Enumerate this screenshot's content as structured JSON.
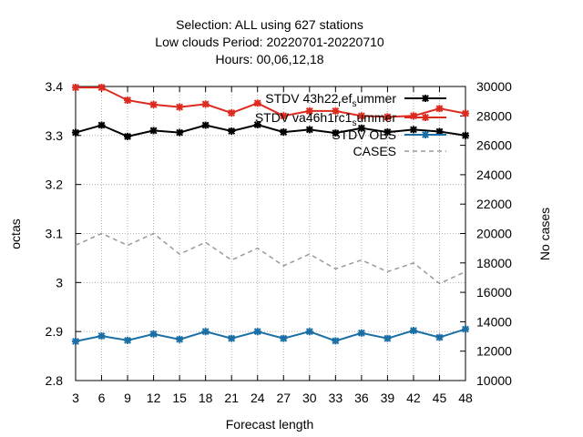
{
  "chart_data": {
    "type": "line",
    "title_lines": [
      "Selection: ALL using   627 stations",
      "Low clouds   Period: 20220701-20220710",
      "Hours:  00,06,12,18"
    ],
    "xlabel": "Forecast length",
    "ylabel": "octas",
    "y2label": "No cases",
    "x": [
      3,
      6,
      9,
      12,
      15,
      18,
      21,
      24,
      27,
      30,
      33,
      36,
      39,
      42,
      45,
      48
    ],
    "xlim": [
      3,
      48
    ],
    "ylim": [
      2.8,
      3.4
    ],
    "y2lim": [
      10000,
      30000
    ],
    "xticks": [
      3,
      6,
      9,
      12,
      15,
      18,
      21,
      24,
      27,
      30,
      33,
      36,
      39,
      42,
      45,
      48
    ],
    "yticks": [
      2.8,
      2.9,
      3,
      3.1,
      3.2,
      3.3,
      3.4
    ],
    "y2ticks": [
      10000,
      12000,
      14000,
      16000,
      18000,
      20000,
      22000,
      24000,
      26000,
      28000,
      30000
    ],
    "grid": true,
    "legend_position": "top-right",
    "series": [
      {
        "name": "STDV 43h22_ref_summer",
        "label_main": "STDV 43h22",
        "label_sub1": "r",
        "label_mid": "ef",
        "label_sub2": "s",
        "label_end": "ummer",
        "color": "#000000",
        "axis": "y",
        "style": "solid",
        "marker": "star",
        "values": [
          3.306,
          3.321,
          3.298,
          3.31,
          3.306,
          3.321,
          3.309,
          3.322,
          3.307,
          3.312,
          3.305,
          3.315,
          3.307,
          3.312,
          3.308,
          3.3
        ]
      },
      {
        "name": "STDV va46h1rc1_summer",
        "label_main": "STDV va46h1rc1",
        "label_sub1": "s",
        "label_end": "ummer",
        "color": "#dd2a1f",
        "axis": "y",
        "style": "solid",
        "marker": "star",
        "values": [
          3.398,
          3.398,
          3.372,
          3.363,
          3.358,
          3.364,
          3.346,
          3.366,
          3.34,
          3.35,
          3.35,
          3.34,
          3.338,
          3.34,
          3.355,
          3.345
        ]
      },
      {
        "name": "STDV OBS",
        "label_main": "STDV OBS",
        "color": "#1a6fa5",
        "axis": "y",
        "style": "solid",
        "marker": "star",
        "values": [
          2.88,
          2.891,
          2.882,
          2.895,
          2.884,
          2.9,
          2.886,
          2.9,
          2.886,
          2.9,
          2.881,
          2.897,
          2.886,
          2.902,
          2.888,
          2.905
        ]
      },
      {
        "name": "CASES",
        "label_main": "CASES",
        "color": "#999999",
        "axis": "y2",
        "style": "dashed",
        "marker": "none",
        "values": [
          19200,
          20000,
          19200,
          20000,
          18600,
          19400,
          18200,
          19000,
          17800,
          18600,
          17600,
          18200,
          17400,
          18000,
          16600,
          17400
        ]
      }
    ]
  }
}
